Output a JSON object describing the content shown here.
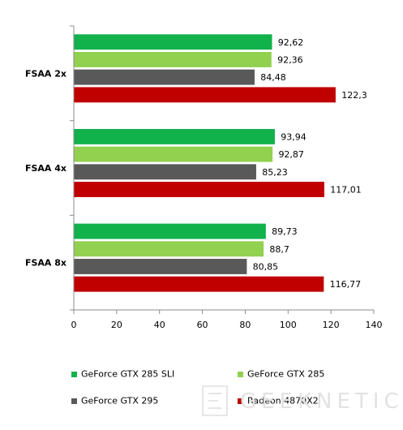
{
  "chart_data": {
    "type": "bar",
    "orientation": "horizontal",
    "categories": [
      "FSAA 2x",
      "FSAA 4x",
      "FSAA 8x"
    ],
    "series": [
      {
        "name": "GeForce GTX 285 SLI",
        "color": "#11b14c",
        "values": [
          92.62,
          93.94,
          89.73
        ],
        "labels": [
          "92,62",
          "93,94",
          "89,73"
        ]
      },
      {
        "name": "GeForce GTX 285",
        "color": "#92d050",
        "values": [
          92.36,
          92.87,
          88.7
        ],
        "labels": [
          "92,36",
          "92,87",
          "88,7"
        ]
      },
      {
        "name": "GeForce GTX 295",
        "color": "#595959",
        "values": [
          84.48,
          85.23,
          80.85
        ],
        "labels": [
          "84,48",
          "85,23",
          "80,85"
        ]
      },
      {
        "name": "Radeon 4870X2",
        "color": "#c00000",
        "values": [
          122.3,
          117.01,
          116.77
        ],
        "labels": [
          "122,3",
          "117,01",
          "116,77"
        ]
      }
    ],
    "xlim": [
      0,
      140
    ],
    "xticks": [
      "0",
      "20",
      "40",
      "60",
      "80",
      "100",
      "120",
      "140"
    ],
    "legend_position": "bottom",
    "grid": false
  },
  "watermark": {
    "text": "GEEKNETIC"
  }
}
